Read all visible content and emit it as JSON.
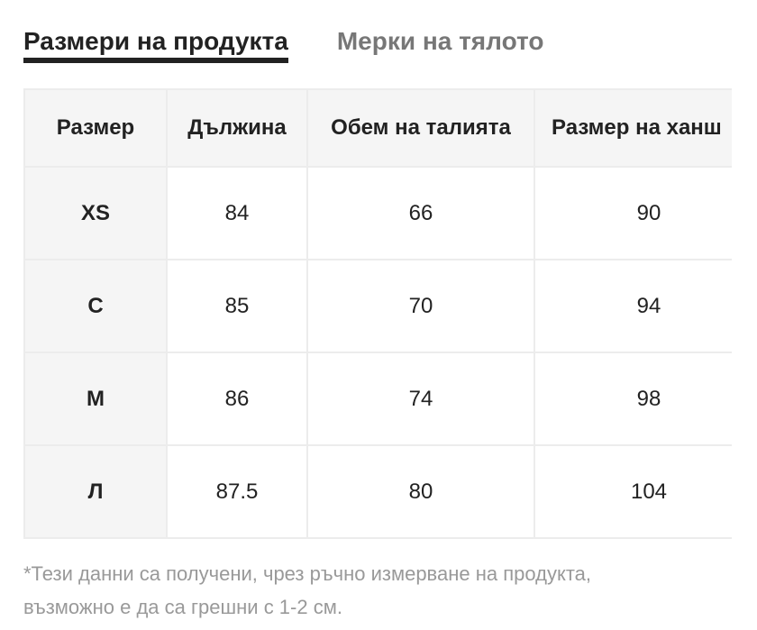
{
  "tabs": [
    {
      "label": "Размери на продукта",
      "active": true
    },
    {
      "label": "Мерки на тялото",
      "active": false
    }
  ],
  "table": {
    "headers": [
      "Размер",
      "Дължина",
      "Обем на талията",
      "Размер на ханш"
    ],
    "rows": [
      [
        "XS",
        "84",
        "66",
        "90"
      ],
      [
        "С",
        "85",
        "70",
        "94"
      ],
      [
        "М",
        "86",
        "74",
        "98"
      ],
      [
        "Л",
        "87.5",
        "80",
        "104"
      ]
    ]
  },
  "note": {
    "line1": "*Тези данни са получени, чрез ръчно измерване на продукта,",
    "line2": "възможно е да са грешни с 1-2 см."
  }
}
